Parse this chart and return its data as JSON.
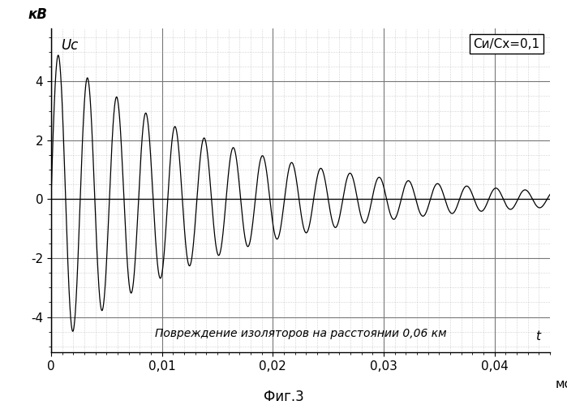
{
  "ylabel": "кВ",
  "y_label_italic": "Uc",
  "xlabel": "мс",
  "xlim": [
    0,
    0.045
  ],
  "ylim": [
    -5.2,
    5.8
  ],
  "xticks": [
    0,
    0.01,
    0.02,
    0.03,
    0.04
  ],
  "xtick_labels": [
    "0",
    "0,01",
    "0,02",
    "0,03",
    "0,04"
  ],
  "yticks": [
    -4,
    -2,
    0,
    2,
    4
  ],
  "ytick_labels": [
    "-4",
    "-2",
    "0",
    "2",
    "4"
  ],
  "annotation": "Повреждение изоляторов на расстоянии 0,06 км",
  "corner_text": "Си/Сх=0,1",
  "fig_label": "Фиг.3",
  "background_color": "#ffffff",
  "line_color": "#000000",
  "grid_major_color": "#777777",
  "grid_minor_color": "#aaaaaa",
  "signal_peak": 5.0,
  "signal_decay": 80,
  "signal_freq": 200,
  "signal_t0": 0.0008
}
